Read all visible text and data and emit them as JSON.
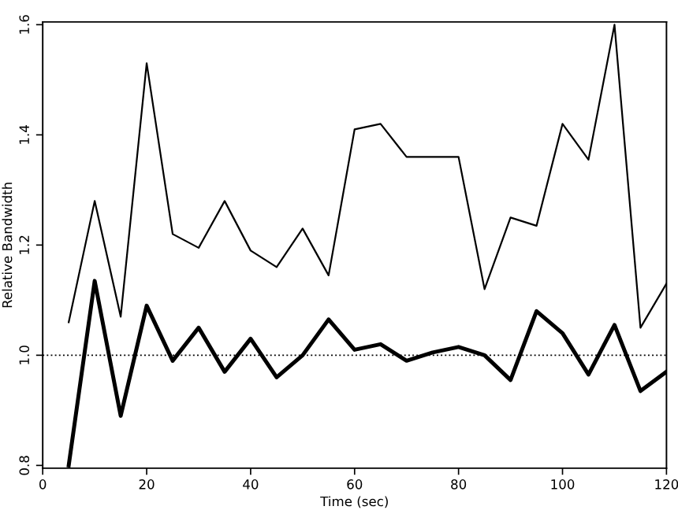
{
  "chart_data": {
    "type": "line",
    "xlabel": "Time (sec)",
    "ylabel": "Relative Bandwidth",
    "x": [
      5,
      10,
      15,
      20,
      25,
      30,
      35,
      40,
      45,
      50,
      55,
      60,
      65,
      70,
      75,
      80,
      85,
      90,
      95,
      100,
      105,
      110,
      115,
      120
    ],
    "series": [
      {
        "color": "#000000",
        "values": [
          1.06,
          1.28,
          1.07,
          1.53,
          1.22,
          1.195,
          1.28,
          1.19,
          1.16,
          1.23,
          1.145,
          1.41,
          1.42,
          1.36,
          1.36,
          1.36,
          1.12,
          1.25,
          1.235,
          1.42,
          1.355,
          1.6,
          1.05,
          1.13
        ]
      },
      {
        "color": "#000000",
        "values": [
          0.8,
          1.135,
          0.89,
          1.09,
          0.99,
          1.05,
          0.97,
          1.03,
          0.96,
          1.0,
          1.065,
          1.01,
          1.02,
          0.99,
          1.005,
          1.015,
          1.0,
          0.955,
          1.08,
          1.04,
          0.965,
          1.055,
          0.935,
          0.97
        ]
      }
    ],
    "xlim": [
      0,
      120
    ],
    "xticks": [
      0,
      20,
      40,
      60,
      80,
      100,
      120
    ],
    "ylim": [
      0.795,
      1.605
    ],
    "yticks": [
      {
        "value": 0.8,
        "label": "0.8"
      },
      {
        "value": 1.0,
        "label": "1.0"
      },
      {
        "value": 1.2,
        "label": "1.2"
      },
      {
        "value": 1.4,
        "label": "1.4"
      },
      {
        "value": 1.6,
        "label": "1.6"
      }
    ],
    "ref_lines": [
      {
        "axis": "y",
        "value": 1.0,
        "color": "#000000",
        "line_style": "dotted"
      }
    ],
    "grid": false
  }
}
